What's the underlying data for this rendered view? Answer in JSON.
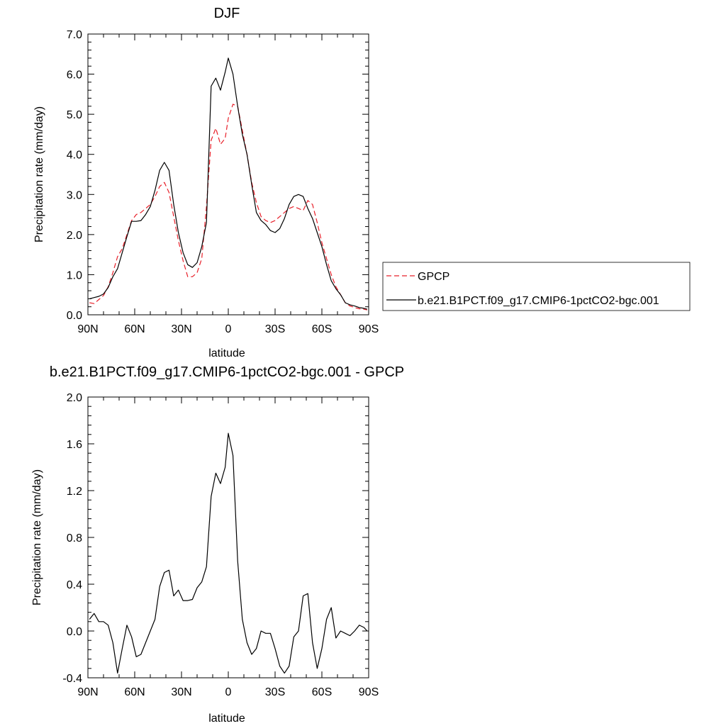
{
  "colors": {
    "gpcp": "#e8202a",
    "model": "#000000",
    "background": "#ffffff"
  },
  "chart_data": [
    {
      "type": "line",
      "title": "DJF",
      "xlabel": "latitude",
      "ylabel": "Precipitation rate (mm/day)",
      "xlim": [
        90,
        -90
      ],
      "ylim": [
        0.0,
        7.0
      ],
      "xticks": [
        90,
        60,
        30,
        0,
        -30,
        -60,
        -90
      ],
      "xticklabels": [
        "90N",
        "60N",
        "30N",
        "0",
        "30S",
        "60S",
        "90S"
      ],
      "yticks": [
        0,
        1,
        2,
        3,
        4,
        5,
        6,
        7
      ],
      "yticklabels": [
        "0.0",
        "1.0",
        "2.0",
        "3.0",
        "4.0",
        "5.0",
        "6.0",
        "7.0"
      ],
      "legend_position": "right",
      "series": [
        {
          "name": "GPCP",
          "style": "dashed",
          "color": "#e8202a",
          "x": [
            89,
            86,
            83,
            80,
            77,
            74,
            71,
            68,
            65,
            62,
            59,
            56,
            53,
            50,
            47,
            44,
            41,
            38,
            35,
            32,
            29,
            26,
            23,
            20,
            17,
            14,
            11,
            8,
            5,
            2,
            0,
            -3,
            -6,
            -9,
            -12,
            -15,
            -18,
            -21,
            -24,
            -27,
            -30,
            -33,
            -36,
            -39,
            -42,
            -45,
            -48,
            -51,
            -54,
            -57,
            -60,
            -63,
            -66,
            -69,
            -72,
            -75,
            -78,
            -81,
            -84,
            -87,
            -89
          ],
          "y": [
            0.3,
            0.28,
            0.38,
            0.48,
            0.7,
            1.05,
            1.45,
            1.65,
            2.0,
            2.35,
            2.5,
            2.55,
            2.65,
            2.75,
            2.95,
            3.2,
            3.3,
            3.05,
            2.45,
            1.85,
            1.35,
            0.95,
            0.95,
            1.05,
            1.4,
            2.7,
            4.35,
            4.65,
            4.25,
            4.4,
            4.9,
            5.25,
            5.2,
            4.6,
            4.0,
            3.3,
            2.8,
            2.45,
            2.35,
            2.3,
            2.35,
            2.45,
            2.55,
            2.65,
            2.7,
            2.65,
            2.6,
            2.85,
            2.75,
            2.3,
            1.8,
            1.4,
            1.0,
            0.7,
            0.5,
            0.3,
            0.22,
            0.18,
            0.15,
            0.14,
            0.12
          ]
        },
        {
          "name": "b.e21.B1PCT.f09_g17.CMIP6-1pctCO2-bgc.001",
          "style": "solid",
          "color": "#000000",
          "x": [
            89,
            86,
            83,
            80,
            77,
            74,
            71,
            68,
            65,
            62,
            59,
            56,
            53,
            50,
            47,
            44,
            41,
            38,
            35,
            32,
            29,
            26,
            23,
            20,
            17,
            14,
            11,
            8,
            5,
            2,
            0,
            -3,
            -6,
            -9,
            -12,
            -15,
            -18,
            -21,
            -24,
            -27,
            -30,
            -33,
            -36,
            -39,
            -42,
            -45,
            -48,
            -51,
            -54,
            -57,
            -60,
            -63,
            -66,
            -69,
            -72,
            -75,
            -78,
            -81,
            -84,
            -87,
            -89
          ],
          "y": [
            0.4,
            0.43,
            0.46,
            0.52,
            0.68,
            0.95,
            1.15,
            1.55,
            1.95,
            2.33,
            2.33,
            2.35,
            2.5,
            2.7,
            3.1,
            3.6,
            3.8,
            3.6,
            2.75,
            2.05,
            1.55,
            1.25,
            1.18,
            1.3,
            1.7,
            2.3,
            5.7,
            5.9,
            5.6,
            6.05,
            6.4,
            6.0,
            5.2,
            4.5,
            4.0,
            3.25,
            2.55,
            2.35,
            2.25,
            2.1,
            2.05,
            2.15,
            2.4,
            2.75,
            2.95,
            3.0,
            2.95,
            2.65,
            2.4,
            2.05,
            1.7,
            1.25,
            0.85,
            0.65,
            0.5,
            0.3,
            0.25,
            0.22,
            0.18,
            0.16,
            0.14
          ]
        }
      ]
    },
    {
      "type": "line",
      "title": "b.e21.B1PCT.f09_g17.CMIP6-1pctCO2-bgc.001 - GPCP",
      "xlabel": "latitude",
      "ylabel": "Precipitation rate (mm/day)",
      "xlim": [
        90,
        -90
      ],
      "ylim": [
        -0.4,
        2.0
      ],
      "xticks": [
        90,
        60,
        30,
        0,
        -30,
        -60,
        -90
      ],
      "xticklabels": [
        "90N",
        "60N",
        "30N",
        "0",
        "30S",
        "60S",
        "90S"
      ],
      "yticks": [
        -0.4,
        0.0,
        0.4,
        0.8,
        1.2,
        1.6,
        2.0
      ],
      "yticklabels": [
        "-0.4",
        "0.0",
        "0.4",
        "0.8",
        "1.2",
        "1.6",
        "2.0"
      ],
      "series": [
        {
          "style": "solid",
          "color": "#000000",
          "x": [
            89,
            86,
            83,
            80,
            77,
            74,
            71,
            68,
            65,
            62,
            59,
            56,
            53,
            50,
            47,
            44,
            41,
            38,
            35,
            32,
            29,
            26,
            23,
            20,
            17,
            14,
            11,
            8,
            5,
            2,
            0,
            -3,
            -6,
            -9,
            -12,
            -15,
            -18,
            -21,
            -24,
            -27,
            -30,
            -33,
            -36,
            -39,
            -42,
            -45,
            -48,
            -51,
            -54,
            -57,
            -60,
            -63,
            -66,
            -69,
            -72,
            -75,
            -78,
            -81,
            -84,
            -87,
            -89
          ],
          "y": [
            0.1,
            0.15,
            0.08,
            0.08,
            0.05,
            -0.1,
            -0.36,
            -0.15,
            0.05,
            -0.05,
            -0.22,
            -0.2,
            -0.1,
            0.0,
            0.1,
            0.38,
            0.5,
            0.52,
            0.3,
            0.35,
            0.26,
            0.26,
            0.27,
            0.37,
            0.42,
            0.55,
            1.15,
            1.35,
            1.26,
            1.4,
            1.69,
            1.5,
            0.6,
            0.1,
            -0.1,
            -0.2,
            -0.15,
            0.0,
            -0.02,
            -0.02,
            -0.15,
            -0.3,
            -0.36,
            -0.3,
            -0.05,
            0.0,
            0.3,
            0.32,
            -0.1,
            -0.32,
            -0.15,
            0.1,
            0.2,
            -0.06,
            0.0,
            -0.02,
            -0.04,
            0.0,
            0.05,
            0.03,
            0.0
          ]
        }
      ]
    }
  ]
}
